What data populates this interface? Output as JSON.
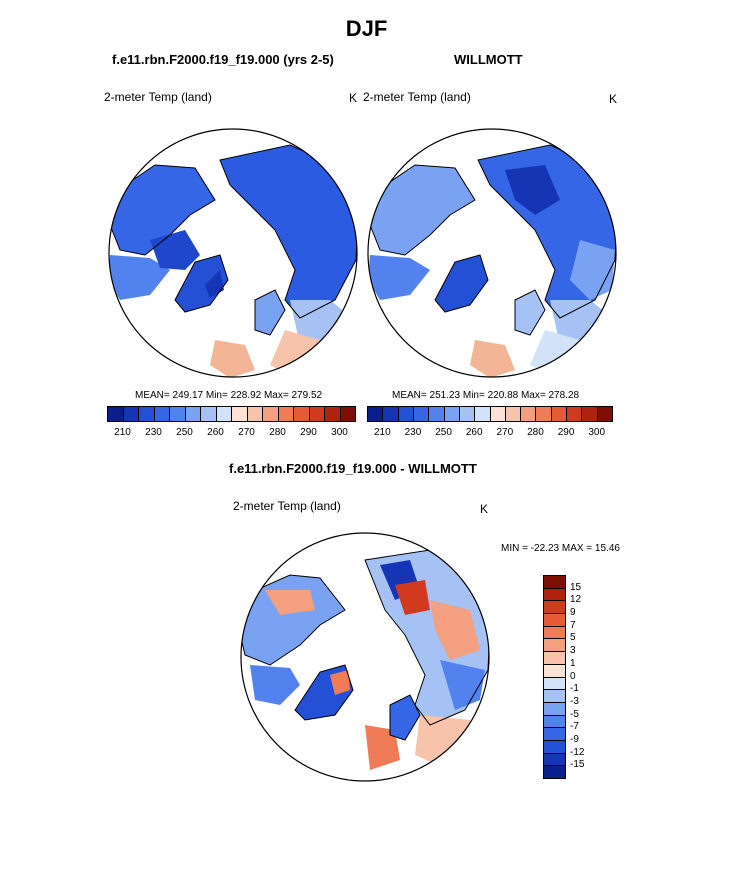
{
  "main_title": "DJF",
  "panels": [
    {
      "title": "f.e11.rbn.F2000.f19_f19.000 (yrs 2-5)",
      "variable": "2-meter Temp (land)",
      "units": "K",
      "stats": "MEAN= 249.17  Min= 228.92  Max= 279.52"
    },
    {
      "title": "WILLMOTT",
      "variable": "2-meter Temp (land)",
      "units": "K",
      "stats": "MEAN= 251.23  Min= 220.88  Max= 278.28"
    },
    {
      "title": "f.e11.rbn.F2000.f19_f19.000 - WILLMOTT",
      "variable": "2-meter Temp (land)",
      "units": "K",
      "stats": "MIN = -22.23 MAX =  15.46"
    }
  ],
  "abs_colorbar": {
    "colors": [
      "#0a1e8c",
      "#1535b5",
      "#2450d6",
      "#3566e6",
      "#5282ee",
      "#7aa2f2",
      "#a6c2f5",
      "#d2e2f8",
      "#fbe2d5",
      "#f7c3aa",
      "#f4a080",
      "#ef7c57",
      "#e65a35",
      "#d23a1f",
      "#b02210",
      "#7e0f06"
    ],
    "labels": [
      "210",
      "230",
      "250",
      "260",
      "270",
      "280",
      "290",
      "300"
    ]
  },
  "diff_colorbar": {
    "colors": [
      "#7e0f06",
      "#b02210",
      "#d23a1f",
      "#e65a35",
      "#ef7c57",
      "#f4a080",
      "#f7c3aa",
      "#fbe2d5",
      "#d2e2f8",
      "#a6c2f5",
      "#7aa2f2",
      "#5282ee",
      "#3566e6",
      "#2450d6",
      "#1535b5",
      "#0a1e8c"
    ],
    "labels": [
      "15",
      "12",
      "9",
      "7",
      "5",
      "3",
      "1",
      "0",
      "-1",
      "-3",
      "-5",
      "-7",
      "-9",
      "-12",
      "-15"
    ]
  }
}
